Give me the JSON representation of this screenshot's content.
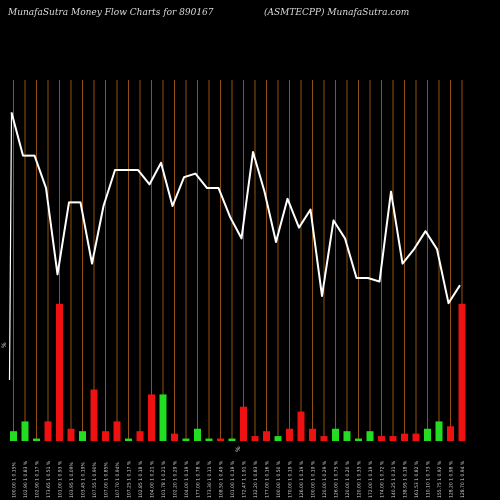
{
  "header": {
    "left_title": "MunafaSutra  Money Flow  Charts for 890167",
    "right_title": "(ASMTECPP) MunafaSutra.com"
  },
  "colors": {
    "background": "#000000",
    "grid": "#b8651b",
    "line": "#ffffff",
    "up_bar": "#22dd22",
    "down_bar": "#ee1111",
    "text": "#dddddd"
  },
  "chart_data": {
    "type": "bar",
    "grid": true,
    "series": [
      {
        "type": "line",
        "values": [
          91,
          79,
          79,
          70,
          46,
          66,
          66,
          49,
          65,
          75,
          75,
          75,
          71,
          77,
          65,
          73,
          74,
          70,
          70,
          62,
          56,
          80,
          69,
          55,
          67,
          59,
          64,
          40,
          61,
          56,
          45,
          45,
          44,
          69,
          49,
          53,
          58,
          53,
          38,
          43
        ]
      },
      {
        "type": "bar",
        "values": [
          4,
          8,
          1,
          8,
          56,
          5,
          4,
          21,
          4,
          8,
          1,
          4,
          19,
          19,
          3,
          1,
          5,
          1,
          1,
          1,
          14,
          2,
          4,
          2,
          5,
          12,
          5,
          2,
          5,
          4,
          1,
          4,
          2,
          2,
          3,
          3,
          5,
          8,
          6,
          56
        ],
        "direction": [
          "up",
          "up",
          "up",
          "down",
          "down",
          "down",
          "up",
          "down",
          "down",
          "down",
          "up",
          "down",
          "down",
          "up",
          "down",
          "up",
          "up",
          "up",
          "down",
          "up",
          "down",
          "down",
          "down",
          "up",
          "down",
          "down",
          "down",
          "down",
          "up",
          "up",
          "up",
          "up",
          "down",
          "down",
          "down",
          "down",
          "up",
          "up",
          "down",
          "down"
        ]
      }
    ],
    "categories": [
      "100.00 1 0.15%",
      "102.90 1 0.83 %",
      "102.90 1 0.17 %",
      "173.65 1 0.51 %",
      "101.00 1 0.93 %",
      "103.95 1 0.09%",
      "103.45 1 0.19%",
      "107.55 1 0.90%",
      "107.00 1 0.85%",
      "107.70 1 0.94%",
      "107.25 1 0.17 %",
      "102.85 1 0.18 %",
      "104.00 1 0.21 %",
      "101.78 1 0.21 %",
      "102.20 1 0.29 %",
      "104.00 1 0.19 %",
      "177.00 1 0.78 %",
      "173.30 1 0.11 %",
      "108.50 1 0.49 %",
      "101.00 1 0.19 %",
      "172.47 1 1.91 %",
      "132.20 1 0.83 %",
      "177.00 1 0.16 %",
      "100.00 1 0.50 %",
      "170.00 1 0.19 %",
      "126.00 1 0.19 %",
      "100.00 1 0.19 %",
      "120.00 1 0.29 %",
      "126.00 1 0.75 %",
      "120.00 1 0.20 %",
      "120.00 1 0.33 %",
      "172.00 1 0.19 %",
      "174.00 1 0.72 %",
      "140.25 1 0.31 %",
      "138.95 1 0.18 %",
      "161.53 1 0.82 %",
      "110.10 1 0.73 %",
      "155.75 1 0.92 %",
      "128.20 1 0.98 %",
      "128.70 1 0.94 %"
    ],
    "markers": [
      "%",
      "%"
    ]
  }
}
